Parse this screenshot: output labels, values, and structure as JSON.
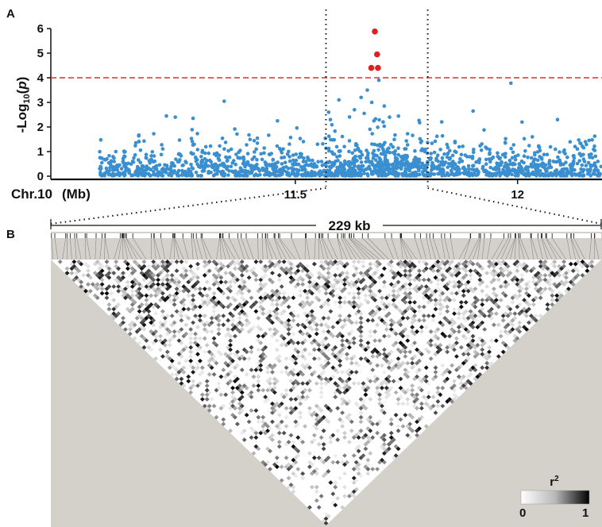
{
  "chart_data": [
    {
      "type": "scatter",
      "panel_label": "A",
      "ylabel": "-Log10(p)",
      "ylabel_parts": {
        "prefix": "-Log",
        "sub": "10",
        "open": "(",
        "var": "p",
        "close": ")"
      },
      "xlabel": "Chr.10  (Mb)",
      "xlabel_chr": "Chr.10",
      "xlabel_unit": "(Mb)",
      "xlim": [
        10.95,
        12.19
      ],
      "ylim": [
        0,
        6.3
      ],
      "yticks": [
        "0",
        "1",
        "2",
        "3",
        "4",
        "5",
        "6"
      ],
      "xticks": [
        {
          "value": 11.5,
          "label": "11.5"
        },
        {
          "value": 12,
          "label": "12"
        }
      ],
      "threshold": {
        "value": 4,
        "color": "#e0302f"
      },
      "region": [
        11.569,
        11.798
      ],
      "point_color": "#3a8fd0",
      "highlight_color": "#e02020",
      "seed": 7,
      "base_range": [
        11.06,
        12.19
      ],
      "highlight_points": [
        {
          "x": 11.679,
          "y": 5.88
        },
        {
          "x": 11.684,
          "y": 4.95
        },
        {
          "x": 11.671,
          "y": 4.4
        },
        {
          "x": 11.686,
          "y": 4.4
        }
      ],
      "peak_points": [
        {
          "x": 11.688,
          "y": 3.9
        },
        {
          "x": 11.662,
          "y": 3.5
        },
        {
          "x": 11.648,
          "y": 3.2
        },
        {
          "x": 11.672,
          "y": 3.0
        },
        {
          "x": 11.7,
          "y": 2.85
        },
        {
          "x": 11.633,
          "y": 2.7
        },
        {
          "x": 11.655,
          "y": 2.55
        },
        {
          "x": 11.575,
          "y": 2.6
        },
        {
          "x": 11.579,
          "y": 2.3
        },
        {
          "x": 11.712,
          "y": 2.4
        },
        {
          "x": 11.598,
          "y": 3.1
        }
      ],
      "other_points": [
        {
          "x": 11.34,
          "y": 3.05
        },
        {
          "x": 11.985,
          "y": 3.78
        },
        {
          "x": 11.9,
          "y": 2.65
        },
        {
          "x": 11.21,
          "y": 2.45
        },
        {
          "x": 11.23,
          "y": 2.4
        },
        {
          "x": 11.27,
          "y": 2.35
        },
        {
          "x": 12.01,
          "y": 2.2
        },
        {
          "x": 12.09,
          "y": 2.3
        },
        {
          "x": 11.46,
          "y": 2.25
        }
      ]
    },
    {
      "type": "heatmap",
      "panel_label": "B",
      "span_label": "229 kb",
      "n_markers": 118,
      "legend_title": "r²",
      "legend_title_parts": {
        "base": "r",
        "sup": "2"
      },
      "legend_min": "0",
      "legend_max": "1",
      "background_color": "#d4d1ca"
    }
  ]
}
